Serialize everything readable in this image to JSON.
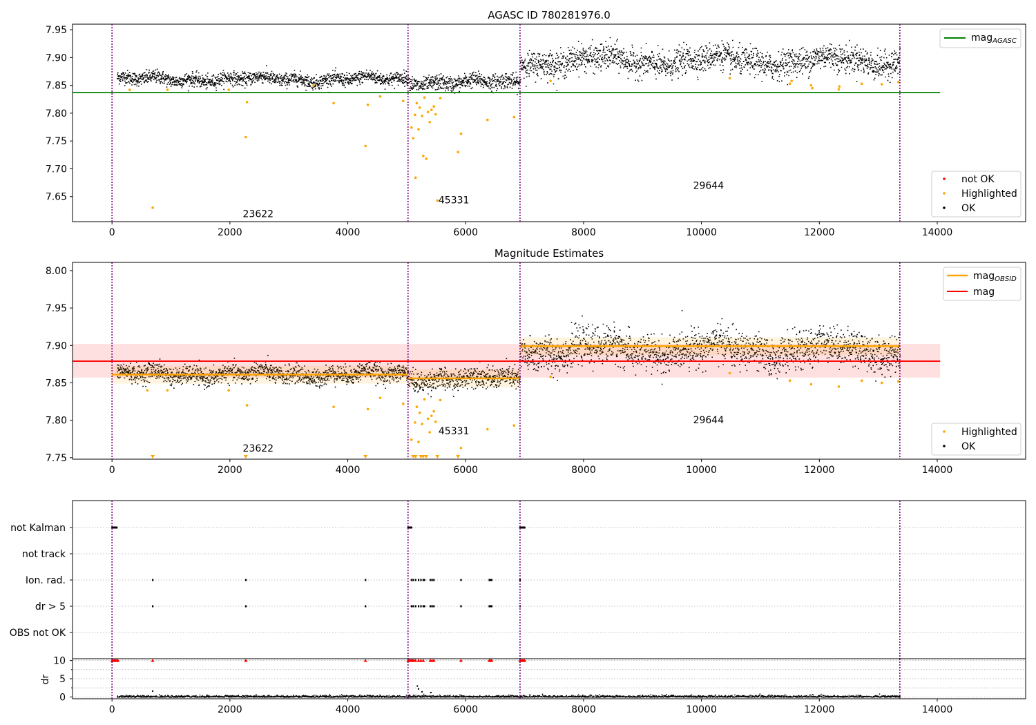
{
  "chart_data": [
    {
      "type": "scatter",
      "title": "AGASC ID 780281976.0",
      "xlabel": "",
      "ylabel": "",
      "xlim": [
        -670,
        15500
      ],
      "ylim": [
        7.605,
        7.96
      ],
      "xticks": [
        0,
        2000,
        4000,
        6000,
        8000,
        10000,
        12000,
        14000
      ],
      "xtick_labels": [
        "0",
        "2000",
        "4000",
        "6000",
        "8000",
        "10000",
        "12000",
        "14000"
      ],
      "yticks": [
        7.65,
        7.7,
        7.75,
        7.8,
        7.85,
        7.9,
        7.95
      ],
      "ytick_labels": [
        "7.65",
        "7.70",
        "7.75",
        "7.80",
        "7.85",
        "7.90",
        "7.95"
      ],
      "obs_boundaries": [
        0,
        5022,
        6922,
        13366
      ],
      "hline": {
        "name": "mag_AGASC",
        "value": 7.837,
        "xmax": 14050,
        "color": "#008000"
      },
      "segments": [
        {
          "x0": 0,
          "x1": 5022,
          "mean": 7.862,
          "noise": 0.006
        },
        {
          "x0": 5022,
          "x1": 6922,
          "mean": 7.856,
          "noise": 0.007
        },
        {
          "x0": 6922,
          "x1": 13366,
          "mean": 7.895,
          "noise": 0.012
        }
      ],
      "highlighted_points": [
        [
          690,
          7.63
        ],
        [
          2270,
          7.757
        ],
        [
          2290,
          7.82
        ],
        [
          3760,
          7.818
        ],
        [
          4300,
          7.741
        ],
        [
          4340,
          7.815
        ],
        [
          4550,
          7.83
        ],
        [
          4940,
          7.822
        ],
        [
          5080,
          7.774
        ],
        [
          5110,
          7.755
        ],
        [
          5140,
          7.797
        ],
        [
          5150,
          7.684
        ],
        [
          5170,
          7.818
        ],
        [
          5200,
          7.771
        ],
        [
          5220,
          7.81
        ],
        [
          5260,
          7.795
        ],
        [
          5280,
          7.723
        ],
        [
          5300,
          7.828
        ],
        [
          5330,
          7.718
        ],
        [
          5360,
          7.802
        ],
        [
          5390,
          7.784
        ],
        [
          5420,
          7.806
        ],
        [
          5460,
          7.812
        ],
        [
          5490,
          7.798
        ],
        [
          5520,
          7.643
        ],
        [
          5570,
          7.827
        ],
        [
          5870,
          7.73
        ],
        [
          5920,
          7.763
        ],
        [
          6370,
          7.788
        ],
        [
          6820,
          7.793
        ],
        [
          7440,
          7.858
        ],
        [
          300,
          7.842
        ],
        [
          940,
          7.842
        ],
        [
          1980,
          7.842
        ],
        [
          3420,
          7.85
        ],
        [
          10480,
          7.863
        ],
        [
          11500,
          7.853
        ],
        [
          11530,
          7.858
        ],
        [
          11860,
          7.85
        ],
        [
          11880,
          7.845
        ],
        [
          12330,
          7.843
        ],
        [
          12340,
          7.848
        ],
        [
          12720,
          7.853
        ],
        [
          13060,
          7.852
        ],
        [
          13340,
          7.856
        ]
      ],
      "annotations": [
        {
          "text": "23622",
          "x": 2480,
          "y": 7.613
        },
        {
          "text": "45331",
          "x": 5800,
          "y": 7.638
        },
        {
          "text": "29644",
          "x": 10120,
          "y": 7.664
        }
      ],
      "legend_top": [
        "mag_AGASC"
      ],
      "legend_top_main": "mag",
      "legend_top_sub": "AGASC",
      "legend_bottom": [
        "not OK",
        "Highlighted",
        "OK"
      ],
      "colors": {
        "ok": "#000000",
        "highlighted": "#ffa500",
        "not_ok": "#ff0000",
        "boundary": "#800080"
      }
    },
    {
      "type": "scatter",
      "title": "Magnitude Estimates",
      "xlabel": "",
      "ylabel": "",
      "xlim": [
        -670,
        15500
      ],
      "ylim": [
        7.748,
        8.011
      ],
      "xticks": [
        0,
        2000,
        4000,
        6000,
        8000,
        10000,
        12000,
        14000
      ],
      "xtick_labels": [
        "0",
        "2000",
        "4000",
        "6000",
        "8000",
        "10000",
        "12000",
        "14000"
      ],
      "yticks": [
        7.75,
        7.8,
        7.85,
        7.9,
        7.95,
        8.0
      ],
      "ytick_labels": [
        "7.75",
        "7.80",
        "7.85",
        "7.90",
        "7.95",
        "8.00"
      ],
      "obs_boundaries": [
        0,
        5022,
        6922,
        13366
      ],
      "mag_band": {
        "value": 7.879,
        "low": 7.857,
        "high": 7.902,
        "xmax": 14050,
        "color": "#ff0000"
      },
      "obsid_mags": [
        {
          "x0": 0,
          "x1": 5022,
          "value": 7.861
        },
        {
          "x0": 5022,
          "x1": 6922,
          "value": 7.856
        },
        {
          "x0": 6922,
          "x1": 13366,
          "value": 7.899
        }
      ],
      "segments": [
        {
          "x0": 0,
          "x1": 5022,
          "mean": 7.862,
          "noise": 0.006
        },
        {
          "x0": 5022,
          "x1": 6922,
          "mean": 7.856,
          "noise": 0.007
        },
        {
          "x0": 6922,
          "x1": 13366,
          "mean": 7.895,
          "noise": 0.012
        }
      ],
      "highlighted_points": [
        [
          2290,
          7.82
        ],
        [
          3760,
          7.818
        ],
        [
          4340,
          7.815
        ],
        [
          4550,
          7.83
        ],
        [
          4940,
          7.822
        ],
        [
          5080,
          7.774
        ],
        [
          5140,
          7.797
        ],
        [
          5170,
          7.818
        ],
        [
          5200,
          7.771
        ],
        [
          5220,
          7.81
        ],
        [
          5260,
          7.795
        ],
        [
          5300,
          7.828
        ],
        [
          5360,
          7.802
        ],
        [
          5390,
          7.784
        ],
        [
          5420,
          7.806
        ],
        [
          5460,
          7.812
        ],
        [
          5490,
          7.798
        ],
        [
          5570,
          7.827
        ],
        [
          5920,
          7.763
        ],
        [
          6370,
          7.788
        ],
        [
          6820,
          7.793
        ],
        [
          7440,
          7.858
        ],
        [
          600,
          7.84
        ],
        [
          940,
          7.84
        ],
        [
          1980,
          7.84
        ],
        [
          10480,
          7.863
        ],
        [
          11500,
          7.853
        ],
        [
          11860,
          7.848
        ],
        [
          12330,
          7.845
        ],
        [
          12720,
          7.853
        ],
        [
          13060,
          7.85
        ],
        [
          13340,
          7.852
        ]
      ],
      "clipped_points": [
        690,
        2270,
        4300,
        5110,
        5150,
        5240,
        5280,
        5330,
        5520,
        5870
      ],
      "annotations": [
        {
          "text": "23622",
          "x": 2480,
          "y": 7.758
        },
        {
          "text": "45331",
          "x": 5800,
          "y": 7.781
        },
        {
          "text": "29644",
          "x": 10120,
          "y": 7.796
        }
      ],
      "legend_top": [
        "mag_OBSID",
        "mag"
      ],
      "legend_top_main": "mag",
      "legend_top_sub": "OBSID",
      "legend_top_second": "mag",
      "legend_bottom": [
        "Highlighted",
        "OK"
      ],
      "colors": {
        "ok": "#000000",
        "highlighted": "#ffa500",
        "obsid": "#ffa500",
        "mag": "#ff0000",
        "boundary": "#800080"
      }
    },
    {
      "type": "scatter",
      "title": "",
      "xlabel": "",
      "ylabel": "",
      "xlim": [
        -670,
        15500
      ],
      "flags": [
        "not Kalman",
        "not track",
        "Ion. rad.",
        "dr > 5",
        "OBS not OK"
      ],
      "obs_boundaries": [
        0,
        5022,
        6922,
        13366
      ],
      "flag_events": {
        "not Kalman": [
          0,
          20,
          40,
          60,
          80,
          5022,
          5040,
          5060,
          5080,
          6922,
          6940,
          6960,
          6980,
          7000
        ],
        "not track": [],
        "Ion. rad.": [
          690,
          2270,
          4300,
          5080,
          5110,
          5150,
          5200,
          5240,
          5280,
          5300,
          5400,
          5430,
          5460,
          5920,
          6400,
          6420,
          6440,
          6922
        ],
        "dr > 5": [
          690,
          2270,
          4300,
          5080,
          5110,
          5150,
          5200,
          5240,
          5280,
          5300,
          5400,
          5430,
          5460,
          5920,
          6400,
          6420,
          6440,
          6922
        ],
        "OBS not OK": []
      }
    },
    {
      "type": "scatter",
      "title": "",
      "xlabel": "",
      "ylabel": "dr",
      "xlim": [
        -670,
        15500
      ],
      "ylim": [
        -0.5,
        10.5
      ],
      "xticks": [
        0,
        2000,
        4000,
        6000,
        8000,
        10000,
        12000,
        14000
      ],
      "xtick_labels": [
        "0",
        "2000",
        "4000",
        "6000",
        "8000",
        "10000",
        "12000",
        "14000"
      ],
      "yticks": [
        0,
        5,
        10
      ],
      "ytick_labels": [
        "0",
        "5",
        "10"
      ],
      "obs_boundaries": [
        0,
        5022,
        6922,
        13366
      ],
      "clipped_red_points": [
        0,
        20,
        40,
        60,
        80,
        100,
        690,
        2270,
        4300,
        5022,
        5040,
        5060,
        5080,
        5100,
        5120,
        5150,
        5200,
        5240,
        5280,
        5400,
        5430,
        5460,
        5920,
        6400,
        6420,
        6440,
        6922,
        6940,
        6960,
        6980,
        7000
      ],
      "outliers": [
        [
          690,
          1.6
        ],
        [
          5180,
          3.0
        ],
        [
          5200,
          2.2
        ],
        [
          5260,
          1.4
        ],
        [
          5410,
          1.2
        ]
      ]
    }
  ]
}
